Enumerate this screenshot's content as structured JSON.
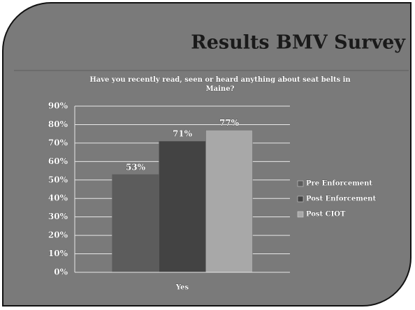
{
  "chart_data": {
    "type": "bar",
    "slide_title": "Results BMV Survey",
    "title": "Have you recently read, seen or heard anything about seat belts in Maine?",
    "categories": [
      "Yes"
    ],
    "series": [
      {
        "name": "Pre Enforcement",
        "color": "#5c5c5c",
        "values": [
          53
        ],
        "value_labels": [
          "53%"
        ]
      },
      {
        "name": "Post Enforcement",
        "color": "#434343",
        "values": [
          71
        ],
        "value_labels": [
          "71%"
        ]
      },
      {
        "name": "Post CIOT",
        "color": "#a8a8a8",
        "values": [
          77
        ],
        "value_labels": [
          "77%"
        ]
      }
    ],
    "ylim": [
      0,
      90
    ],
    "yticks": [
      {
        "value": 0,
        "label": "0%"
      },
      {
        "value": 10,
        "label": "10%"
      },
      {
        "value": 20,
        "label": "20%"
      },
      {
        "value": 30,
        "label": "30%"
      },
      {
        "value": 40,
        "label": "40%"
      },
      {
        "value": 50,
        "label": "50%"
      },
      {
        "value": 60,
        "label": "60%"
      },
      {
        "value": 70,
        "label": "70%"
      },
      {
        "value": 80,
        "label": "80%"
      },
      {
        "value": 90,
        "label": "90%"
      }
    ],
    "grid": true,
    "legend": "right"
  }
}
